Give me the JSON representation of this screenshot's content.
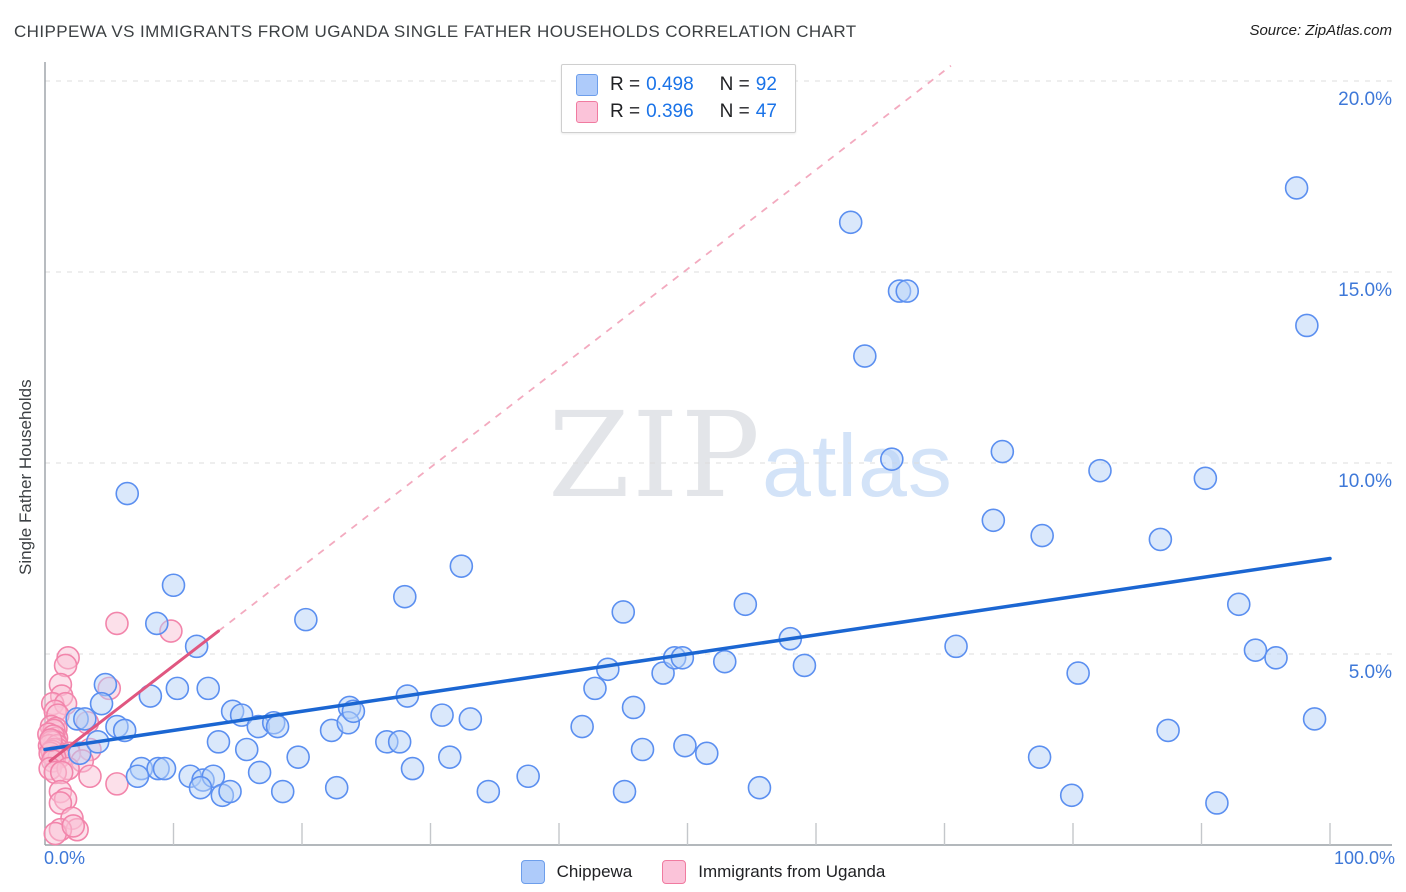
{
  "header": {
    "title": "CHIPPEWA VS IMMIGRANTS FROM UGANDA SINGLE FATHER HOUSEHOLDS CORRELATION CHART",
    "source": "Source: ZipAtlas.com"
  },
  "legend_box": {
    "series": [
      {
        "r_label": "R =",
        "r_value": "0.498",
        "n_label": "N =",
        "n_value": "92",
        "swatch_color": "#aecbfa"
      },
      {
        "r_label": "R =",
        "r_value": "0.396",
        "n_label": "N =",
        "n_value": "47",
        "swatch_color": "#fbc3d9"
      }
    ]
  },
  "bottom_legend": {
    "items": [
      {
        "label": "Chippewa",
        "color": "#aecbfa"
      },
      {
        "label": "Immigrants from Uganda",
        "color": "#fbc3d9"
      }
    ]
  },
  "watermark": {
    "zip": "ZIP",
    "atlas": "atlas"
  },
  "axes": {
    "y_title": "Single Father Households",
    "x_min_label": "0.0%",
    "x_max_label": "100.0%",
    "y_ticks": [
      {
        "value": 5,
        "label": "5.0%"
      },
      {
        "value": 10,
        "label": "10.0%"
      },
      {
        "value": 15,
        "label": "15.0%"
      },
      {
        "value": 20,
        "label": "20.0%"
      }
    ],
    "x_tick_positions": [
      10,
      20,
      30,
      40,
      50,
      60,
      70,
      80,
      90,
      100
    ]
  },
  "chart_data": {
    "type": "scatter",
    "title": "CHIPPEWA VS IMMIGRANTS FROM UGANDA SINGLE FATHER HOUSEHOLDS CORRELATION CHART",
    "xlabel": "",
    "ylabel": "Single Father Households",
    "xlim": [
      0,
      100
    ],
    "ylim": [
      0,
      20.5
    ],
    "grid": "horizontal-dashed",
    "legend_position": "top-center",
    "series": [
      {
        "name": "Chippewa",
        "R": 0.498,
        "N": 92,
        "stroke": "#5b8ff0",
        "fill": "#b6d2f8",
        "points": [
          [
            6.4,
            9.2
          ],
          [
            10,
            6.8
          ],
          [
            8.7,
            5.8
          ],
          [
            11.8,
            5.2
          ],
          [
            4.7,
            4.2
          ],
          [
            10.3,
            4.1
          ],
          [
            12.7,
            4.1
          ],
          [
            8.2,
            3.9
          ],
          [
            4.4,
            3.7
          ],
          [
            2.5,
            3.3
          ],
          [
            3.1,
            3.3
          ],
          [
            5.6,
            3.1
          ],
          [
            6.2,
            3
          ],
          [
            2.7,
            2.4
          ],
          [
            4.1,
            2.7
          ],
          [
            7.5,
            2
          ],
          [
            8.8,
            2
          ],
          [
            7.2,
            1.8
          ],
          [
            9.3,
            2
          ],
          [
            11.3,
            1.8
          ],
          [
            12.3,
            1.7
          ],
          [
            13.1,
            1.8
          ],
          [
            12.1,
            1.5
          ],
          [
            13.8,
            1.3
          ],
          [
            14.4,
            1.4
          ],
          [
            13.5,
            2.7
          ],
          [
            14.6,
            3.5
          ],
          [
            15.3,
            3.4
          ],
          [
            15.7,
            2.5
          ],
          [
            16.6,
            3.1
          ],
          [
            17.8,
            3.2
          ],
          [
            16.7,
            1.9
          ],
          [
            18.5,
            1.4
          ],
          [
            19.7,
            2.3
          ],
          [
            18.1,
            3.1
          ],
          [
            20.3,
            5.9
          ],
          [
            22.3,
            3
          ],
          [
            22.7,
            1.5
          ],
          [
            23.7,
            3.6
          ],
          [
            23.6,
            3.2
          ],
          [
            24,
            3.5
          ],
          [
            26.6,
            2.7
          ],
          [
            28,
            6.5
          ],
          [
            32.4,
            7.3
          ],
          [
            28.2,
            3.9
          ],
          [
            30.9,
            3.4
          ],
          [
            33.1,
            3.3
          ],
          [
            31.5,
            2.3
          ],
          [
            28.6,
            2
          ],
          [
            27.6,
            2.7
          ],
          [
            34.5,
            1.4
          ],
          [
            37.6,
            1.8
          ],
          [
            41.8,
            3.1
          ],
          [
            42.8,
            4.1
          ],
          [
            43.8,
            4.6
          ],
          [
            45,
            6.1
          ],
          [
            45.8,
            3.6
          ],
          [
            45.1,
            1.4
          ],
          [
            46.5,
            2.5
          ],
          [
            48.1,
            4.5
          ],
          [
            49,
            4.9
          ],
          [
            49.6,
            4.9
          ],
          [
            52.9,
            4.8
          ],
          [
            51.5,
            2.4
          ],
          [
            49.8,
            2.6
          ],
          [
            54.5,
            6.3
          ],
          [
            55.6,
            1.5
          ],
          [
            58,
            5.4
          ],
          [
            59.1,
            4.7
          ],
          [
            62.7,
            16.3
          ],
          [
            66.5,
            14.5
          ],
          [
            67.1,
            14.5
          ],
          [
            63.8,
            12.8
          ],
          [
            65.9,
            10.1
          ],
          [
            70.9,
            5.2
          ],
          [
            73.8,
            8.5
          ],
          [
            74.5,
            10.3
          ],
          [
            77.6,
            8.1
          ],
          [
            77.4,
            2.3
          ],
          [
            79.9,
            1.3
          ],
          [
            80.4,
            4.5
          ],
          [
            82.1,
            9.8
          ],
          [
            86.8,
            8
          ],
          [
            87.4,
            3
          ],
          [
            90.3,
            9.6
          ],
          [
            91.2,
            1.1
          ],
          [
            92.9,
            6.3
          ],
          [
            94.2,
            5.1
          ],
          [
            95.8,
            4.9
          ],
          [
            97.4,
            17.2
          ],
          [
            98.2,
            13.6
          ],
          [
            98.8,
            3.3
          ]
        ]
      },
      {
        "name": "Immigrants from Uganda",
        "R": 0.396,
        "N": 47,
        "stroke": "#f285ab",
        "fill": "#f9c2d6",
        "points": [
          [
            5.6,
            5.8
          ],
          [
            9.8,
            5.6
          ],
          [
            1.8,
            4.9
          ],
          [
            1.6,
            4.7
          ],
          [
            1.2,
            4.2
          ],
          [
            5,
            4.1
          ],
          [
            1.3,
            3.9
          ],
          [
            0.6,
            3.7
          ],
          [
            1.6,
            3.7
          ],
          [
            0.8,
            3.5
          ],
          [
            1,
            3.4
          ],
          [
            3.3,
            3.2
          ],
          [
            0.5,
            3.1
          ],
          [
            0.85,
            3.05
          ],
          [
            0.7,
            3
          ],
          [
            0.3,
            2.9
          ],
          [
            0.9,
            2.8
          ],
          [
            0.65,
            2.85
          ],
          [
            0.8,
            2.7
          ],
          [
            0.5,
            2.7
          ],
          [
            0.35,
            2.6
          ],
          [
            0.95,
            2.6
          ],
          [
            1,
            2.5
          ],
          [
            0.7,
            2.5
          ],
          [
            3.5,
            2.5
          ],
          [
            0.55,
            2.45
          ],
          [
            0.4,
            2.4
          ],
          [
            1.9,
            2.4
          ],
          [
            1.1,
            2.3
          ],
          [
            0.75,
            2.3
          ],
          [
            0.6,
            2.2
          ],
          [
            2.9,
            2.2
          ],
          [
            0.4,
            2
          ],
          [
            1.8,
            2
          ],
          [
            0.8,
            1.9
          ],
          [
            1.3,
            1.9
          ],
          [
            3.5,
            1.8
          ],
          [
            5.6,
            1.6
          ],
          [
            1.2,
            1.4
          ],
          [
            1.6,
            1.2
          ],
          [
            1.2,
            1.1
          ],
          [
            2.1,
            0.7
          ],
          [
            2.5,
            0.4
          ],
          [
            1.2,
            0.4
          ],
          [
            0.8,
            0.3
          ],
          [
            2.2,
            0.5
          ],
          [
            0.45,
            2.75
          ]
        ]
      }
    ],
    "trend_lines": [
      {
        "series": "Chippewa",
        "style": "solid",
        "x1": 0,
        "y1": 2.5,
        "x2": 100,
        "y2": 7.5,
        "color": "#1b66d2",
        "width": 3.5
      },
      {
        "series": "Immigrants from Uganda",
        "style": "solid",
        "x1": 0.4,
        "y1": 2.2,
        "x2": 13.5,
        "y2": 5.6,
        "color": "#e05780",
        "width": 3
      },
      {
        "series": "Immigrants from Uganda",
        "style": "dashed",
        "x1": 13.5,
        "y1": 5.6,
        "x2": 70.5,
        "y2": 20.4,
        "color": "#f3aabf",
        "width": 1.8
      }
    ]
  }
}
